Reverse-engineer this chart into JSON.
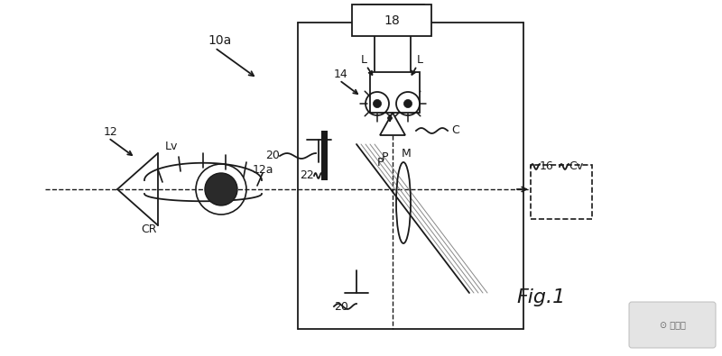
{
  "bg_color": "#ffffff",
  "line_color": "#1a1a1a",
  "fig_label": "Fig.1",
  "figsize": [
    8.0,
    3.95
  ],
  "dpi": 100,
  "xlim": [
    0,
    800
  ],
  "ylim": [
    0,
    395
  ]
}
